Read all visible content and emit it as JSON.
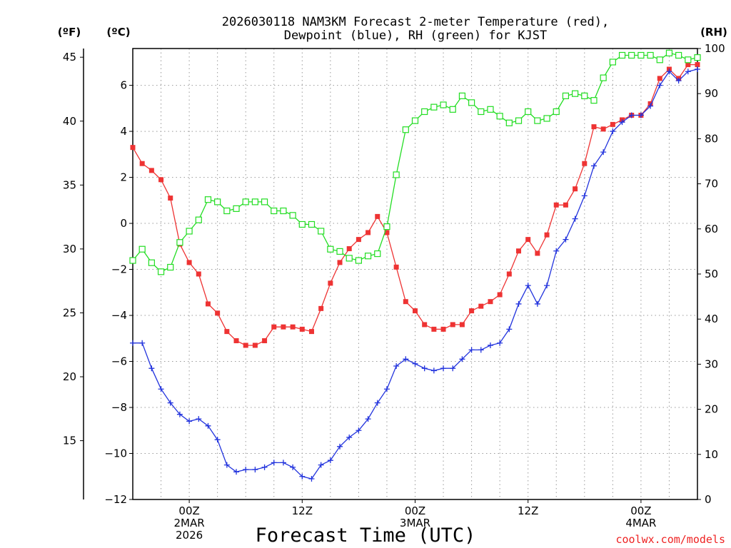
{
  "chart_data": {
    "type": "line",
    "title_line1": "2026030118 NAM3KM Forecast 2-meter Temperature (red),",
    "title_line2": "Dewpoint (blue), RH (green) for KJST",
    "xlabel": "Forecast Time (UTC)",
    "credit": "coolwx.com/models",
    "units": {
      "left_outer": "(ºF)",
      "left_inner": "(ºC)",
      "right": "(RH)"
    },
    "x_range_hours": [
      -6,
      54
    ],
    "x_ticks": [
      {
        "hour": 0,
        "lines": [
          "00Z",
          "2MAR",
          "2026"
        ]
      },
      {
        "hour": 12,
        "lines": [
          "12Z"
        ]
      },
      {
        "hour": 24,
        "lines": [
          "00Z",
          "3MAR"
        ]
      },
      {
        "hour": 36,
        "lines": [
          "12Z"
        ]
      },
      {
        "hour": 48,
        "lines": [
          "00Z",
          "4MAR"
        ]
      }
    ],
    "y_celsius": {
      "range": [
        -12,
        7.6
      ],
      "ticks": [
        -12,
        -10,
        -8,
        -6,
        -4,
        -2,
        0,
        2,
        4,
        6
      ]
    },
    "y_fahrenheit": {
      "ticks": [
        15,
        20,
        25,
        30,
        35,
        40,
        45
      ]
    },
    "y_rh": {
      "range": [
        0,
        100
      ],
      "ticks": [
        0,
        10,
        20,
        30,
        40,
        50,
        60,
        70,
        80,
        90,
        100
      ]
    },
    "colors": {
      "temperature": "#ee3333",
      "dewpoint": "#2233dd",
      "rh": "#22dd22",
      "credit": "#ee2222",
      "grid": "#999999"
    },
    "series": [
      {
        "name": "Temperature",
        "axis": "celsius",
        "marker": "filled-square",
        "x": [
          -6,
          -5,
          -4,
          -3,
          -2,
          -1,
          0,
          1,
          2,
          3,
          4,
          5,
          6,
          7,
          8,
          9,
          10,
          11,
          12,
          13,
          14,
          15,
          16,
          17,
          18,
          19,
          20,
          21,
          22,
          23,
          24,
          25,
          26,
          27,
          28,
          29,
          30,
          31,
          32,
          33,
          34,
          35,
          36,
          37,
          38,
          39,
          40,
          41,
          42,
          43,
          44,
          45,
          46,
          47,
          48,
          49,
          50,
          51,
          52,
          53,
          54
        ],
        "values": [
          3.3,
          2.6,
          2.3,
          1.9,
          1.1,
          -0.9,
          -1.7,
          -2.2,
          -3.5,
          -3.9,
          -4.7,
          -5.1,
          -5.3,
          -5.3,
          -5.1,
          -4.5,
          -4.5,
          -4.5,
          -4.6,
          -4.7,
          -3.7,
          -2.6,
          -1.7,
          -1.1,
          -0.7,
          -0.4,
          0.3,
          -0.4,
          -1.9,
          -3.4,
          -3.8,
          -4.4,
          -4.6,
          -4.6,
          -4.4,
          -4.4,
          -3.8,
          -3.6,
          -3.4,
          -3.1,
          -2.2,
          -1.2,
          -0.7,
          -1.3,
          -0.5,
          0.8,
          0.8,
          1.5,
          2.6,
          4.2,
          4.1,
          4.3,
          4.5,
          4.7,
          4.7,
          5.2,
          6.3,
          6.7,
          6.3,
          6.9,
          6.9
        ]
      },
      {
        "name": "Dewpoint",
        "axis": "celsius",
        "marker": "plus",
        "x": [
          -6,
          -5,
          -4,
          -3,
          -2,
          -1,
          0,
          1,
          2,
          3,
          4,
          5,
          6,
          7,
          8,
          9,
          10,
          11,
          12,
          13,
          14,
          15,
          16,
          17,
          18,
          19,
          20,
          21,
          22,
          23,
          24,
          25,
          26,
          27,
          28,
          29,
          30,
          31,
          32,
          33,
          34,
          35,
          36,
          37,
          38,
          39,
          40,
          41,
          42,
          43,
          44,
          45,
          46,
          47,
          48,
          49,
          50,
          51,
          52,
          53,
          54
        ],
        "values": [
          -5.2,
          -5.2,
          -6.3,
          -7.2,
          -7.8,
          -8.3,
          -8.6,
          -8.5,
          -8.8,
          -9.4,
          -10.5,
          -10.8,
          -10.7,
          -10.7,
          -10.6,
          -10.4,
          -10.4,
          -10.6,
          -11.0,
          -11.1,
          -10.5,
          -10.3,
          -9.7,
          -9.3,
          -9.0,
          -8.5,
          -7.8,
          -7.2,
          -6.2,
          -5.9,
          -6.1,
          -6.3,
          -6.4,
          -6.3,
          -6.3,
          -5.9,
          -5.5,
          -5.5,
          -5.3,
          -5.2,
          -4.6,
          -3.5,
          -2.7,
          -3.5,
          -2.7,
          -1.2,
          -0.7,
          0.2,
          1.2,
          2.5,
          3.1,
          4.0,
          4.4,
          4.7,
          4.7,
          5.1,
          6.0,
          6.6,
          6.2,
          6.6,
          6.7
        ]
      },
      {
        "name": "RH",
        "axis": "rh",
        "marker": "hollow-square",
        "x": [
          -6,
          -5,
          -4,
          -3,
          -2,
          -1,
          0,
          1,
          2,
          3,
          4,
          5,
          6,
          7,
          8,
          9,
          10,
          11,
          12,
          13,
          14,
          15,
          16,
          17,
          18,
          19,
          20,
          21,
          22,
          23,
          24,
          25,
          26,
          27,
          28,
          29,
          30,
          31,
          32,
          33,
          34,
          35,
          36,
          37,
          38,
          39,
          40,
          41,
          42,
          43,
          44,
          45,
          46,
          47,
          48,
          49,
          50,
          51,
          52,
          53,
          54
        ],
        "values": [
          53,
          55.5,
          52.5,
          50.5,
          51.5,
          57,
          59.5,
          62,
          66.5,
          66,
          64,
          64.5,
          66,
          66,
          66,
          64,
          64,
          63,
          61,
          61,
          59.5,
          55.5,
          55,
          53.5,
          53,
          54,
          54.5,
          60.5,
          72,
          82,
          84,
          86,
          87,
          87.5,
          86.5,
          89.5,
          88,
          86,
          86.5,
          85,
          83.5,
          84,
          86,
          84,
          84.5,
          86,
          89.5,
          90,
          89.5,
          88.5,
          93.5,
          97,
          98.5,
          98.5,
          98.5,
          98.5,
          97.5,
          99,
          98.5,
          97.5,
          98
        ]
      }
    ]
  }
}
